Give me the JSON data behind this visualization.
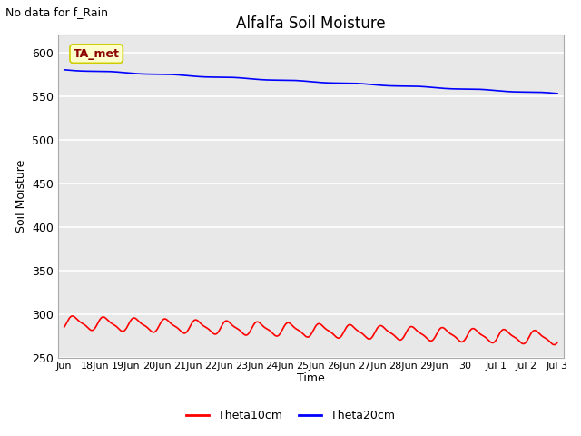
{
  "title": "Alfalfa Soil Moisture",
  "no_data_label": "No data for f_Rain",
  "ta_met_label": "TA_met",
  "ylabel": "Soil Moisture",
  "xlabel": "Time",
  "ylim": [
    250,
    620
  ],
  "yticks": [
    250,
    300,
    350,
    400,
    450,
    500,
    550,
    600
  ],
  "x_tick_labels": [
    "Jun",
    "18Jun",
    "19Jun",
    "20Jun",
    "21Jun",
    "22Jun",
    "23Jun",
    "24Jun",
    "25Jun",
    "26Jun",
    "27Jun",
    "28Jun",
    "29Jun",
    "30",
    "Jul 1",
    "Jul 2",
    "Jul 3"
  ],
  "background_color": "#e8e8e8",
  "fig_background_color": "#ffffff",
  "grid_color": "#ffffff",
  "line_theta10_color": "#ff0000",
  "line_theta20_color": "#0000ff",
  "legend_theta10": "Theta10cm",
  "legend_theta20": "Theta20cm",
  "n_points": 1600
}
